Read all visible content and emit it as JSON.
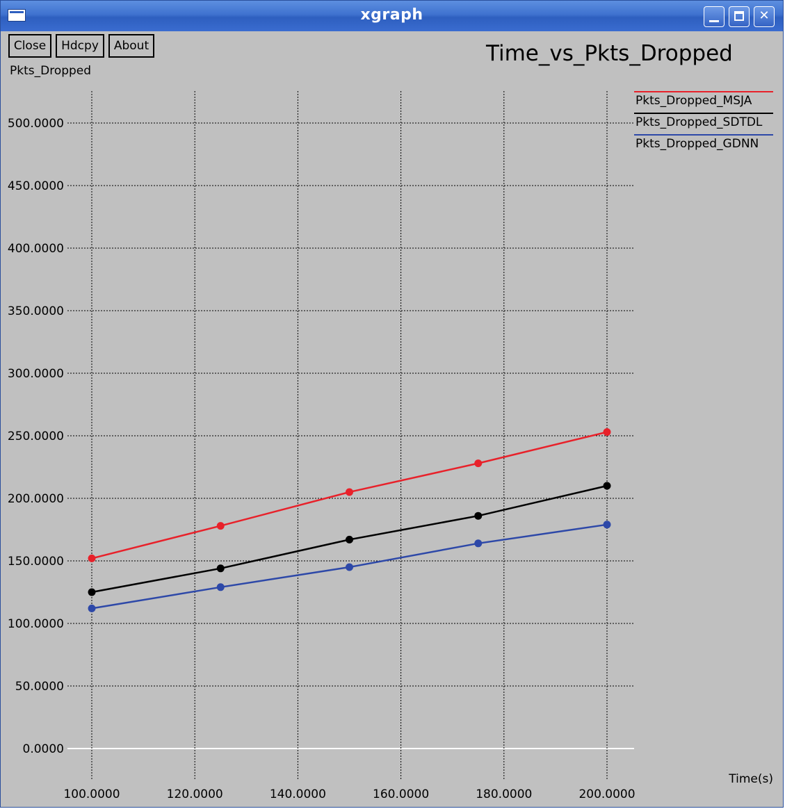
{
  "window": {
    "title": "xgraph"
  },
  "toolbar": {
    "close_label": "Close",
    "hdcpy_label": "Hdcpy",
    "about_label": "About"
  },
  "chart_data": {
    "type": "line",
    "title": "Time_vs_Pkts_Dropped",
    "ylabel": "Pkts_Dropped",
    "xlabel": "Time(s)",
    "x": [
      100,
      125,
      150,
      175,
      200
    ],
    "xlim": [
      100,
      200
    ],
    "ylim": [
      0,
      500
    ],
    "xticks": [
      "100.0000",
      "120.0000",
      "140.0000",
      "160.0000",
      "180.0000",
      "200.0000"
    ],
    "yticks": [
      "0.0000",
      "50.0000",
      "100.0000",
      "150.0000",
      "200.0000",
      "250.0000",
      "300.0000",
      "350.0000",
      "400.0000",
      "450.0000",
      "500.0000"
    ],
    "grid": true,
    "legend_position": "top-right",
    "series": [
      {
        "name": "Pkts_Dropped_MSJA",
        "color": "#e8212a",
        "values": [
          152,
          178,
          205,
          228,
          253
        ]
      },
      {
        "name": "Pkts_Dropped_SDTDL",
        "color": "#000000",
        "values": [
          125,
          144,
          167,
          186,
          210
        ]
      },
      {
        "name": "Pkts_Dropped_GDNN",
        "color": "#2d48a8",
        "values": [
          112,
          129,
          145,
          164,
          179
        ]
      }
    ]
  }
}
